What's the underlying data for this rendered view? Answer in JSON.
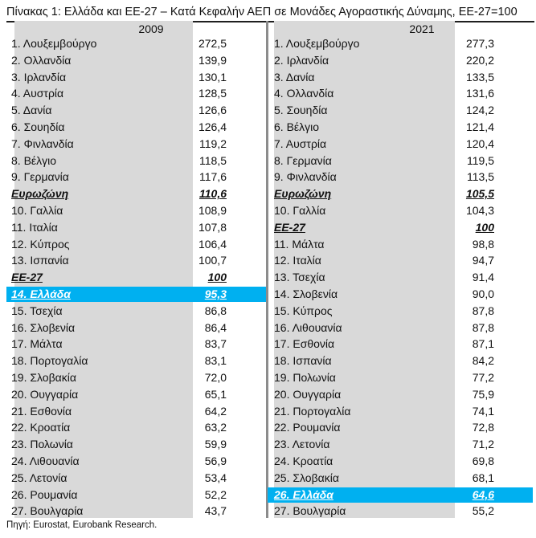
{
  "title": "Πίνακας 1: Ελλάδα και ΕΕ-27 – Κατά Κεφαλήν ΑΕΠ σε Μονάδες Αγοραστικής Δύναμης, ΕΕ-27=100",
  "columns": [
    {
      "year": "2009",
      "rows": [
        {
          "name": "1. Λουξεμβούργο",
          "value": "272,5",
          "style": ""
        },
        {
          "name": "2. Ολλανδία",
          "value": "139,9",
          "style": ""
        },
        {
          "name": "3. Ιρλανδία",
          "value": "130,1",
          "style": ""
        },
        {
          "name": "4. Αυστρία",
          "value": "128,5",
          "style": ""
        },
        {
          "name": "5. Δανία",
          "value": "126,6",
          "style": ""
        },
        {
          "name": "6. Σουηδία",
          "value": "126,4",
          "style": ""
        },
        {
          "name": "7. Φινλανδία",
          "value": "119,2",
          "style": ""
        },
        {
          "name": "8. Βέλγιο",
          "value": "118,5",
          "style": ""
        },
        {
          "name": "9. Γερμανία",
          "value": "117,6",
          "style": ""
        },
        {
          "name": "Ευρωζώνη",
          "value": "110,6",
          "style": "em"
        },
        {
          "name": "10. Γαλλία",
          "value": "108,9",
          "style": ""
        },
        {
          "name": "11. Ιταλία",
          "value": "107,8",
          "style": ""
        },
        {
          "name": "12. Κύπρος",
          "value": "106,4",
          "style": ""
        },
        {
          "name": "13. Ισπανία",
          "value": "100,7",
          "style": ""
        },
        {
          "name": "ΕΕ-27",
          "value": "100",
          "style": "em"
        },
        {
          "name": "14. Ελλάδα",
          "value": "95,3",
          "style": "em hl"
        },
        {
          "name": "15. Τσεχία",
          "value": "86,8",
          "style": ""
        },
        {
          "name": "16. Σλοβενία",
          "value": "86,4",
          "style": ""
        },
        {
          "name": "17. Μάλτα",
          "value": "83,7",
          "style": ""
        },
        {
          "name": "18. Πορτογαλία",
          "value": "83,1",
          "style": ""
        },
        {
          "name": "19. Σλοβακία",
          "value": "72,0",
          "style": ""
        },
        {
          "name": "20. Ουγγαρία",
          "value": "65,1",
          "style": ""
        },
        {
          "name": "21. Εσθονία",
          "value": "64,2",
          "style": ""
        },
        {
          "name": "22. Κροατία",
          "value": "63,2",
          "style": ""
        },
        {
          "name": "23. Πολωνία",
          "value": "59,9",
          "style": ""
        },
        {
          "name": "24. Λιθουανία",
          "value": "56,9",
          "style": ""
        },
        {
          "name": "25. Λετονία",
          "value": "53,4",
          "style": ""
        },
        {
          "name": "26. Ρουμανία",
          "value": "52,2",
          "style": ""
        },
        {
          "name": "27. Βουλγαρία",
          "value": "43,7",
          "style": ""
        }
      ]
    },
    {
      "year": "2021",
      "rows": [
        {
          "name": "1. Λουξεμβούργο",
          "value": "277,3",
          "style": ""
        },
        {
          "name": "2. Ιρλανδία",
          "value": "220,2",
          "style": ""
        },
        {
          "name": "3. Δανία",
          "value": "133,5",
          "style": ""
        },
        {
          "name": "4. Ολλανδία",
          "value": "131,6",
          "style": ""
        },
        {
          "name": "5. Σουηδία",
          "value": "124,2",
          "style": ""
        },
        {
          "name": "6. Βέλγιο",
          "value": "121,4",
          "style": ""
        },
        {
          "name": "7. Αυστρία",
          "value": "120,4",
          "style": ""
        },
        {
          "name": "8. Γερμανία",
          "value": "119,5",
          "style": ""
        },
        {
          "name": "9. Φινλανδία",
          "value": "113,5",
          "style": ""
        },
        {
          "name": "Ευρωζώνη",
          "value": "105,5",
          "style": "em"
        },
        {
          "name": "10. Γαλλία",
          "value": "104,3",
          "style": ""
        },
        {
          "name": "ΕΕ-27",
          "value": "100",
          "style": "em"
        },
        {
          "name": "11. Μάλτα",
          "value": "98,8",
          "style": ""
        },
        {
          "name": "12. Ιταλία",
          "value": "94,7",
          "style": ""
        },
        {
          "name": "13. Τσεχία",
          "value": "91,4",
          "style": ""
        },
        {
          "name": "14. Σλοβενία",
          "value": "90,0",
          "style": ""
        },
        {
          "name": "15. Κύπρος",
          "value": "87,8",
          "style": ""
        },
        {
          "name": "16. Λιθουανία",
          "value": "87,8",
          "style": ""
        },
        {
          "name": "17. Εσθονία",
          "value": "87,1",
          "style": ""
        },
        {
          "name": "18. Ισπανία",
          "value": "84,2",
          "style": ""
        },
        {
          "name": "19. Πολωνία",
          "value": "77,2",
          "style": ""
        },
        {
          "name": "20. Ουγγαρία",
          "value": "75,9",
          "style": ""
        },
        {
          "name": "21. Πορτογαλία",
          "value": "74,1",
          "style": ""
        },
        {
          "name": "22. Ρουμανία",
          "value": "72,8",
          "style": ""
        },
        {
          "name": "23. Λετονία",
          "value": "71,2",
          "style": ""
        },
        {
          "name": "24. Κροατία",
          "value": "69,8",
          "style": ""
        },
        {
          "name": "25. Σλοβακία",
          "value": "68,1",
          "style": ""
        },
        {
          "name": "26. Ελλάδα",
          "value": "64,6",
          "style": "em hl"
        },
        {
          "name": "27. Βουλγαρία",
          "value": "55,2",
          "style": ""
        }
      ]
    }
  ],
  "source": "Πηγή: Eurostat, Eurobank Research.",
  "colors": {
    "highlight": "#00b0f0",
    "shade": "#d9d9d9"
  }
}
